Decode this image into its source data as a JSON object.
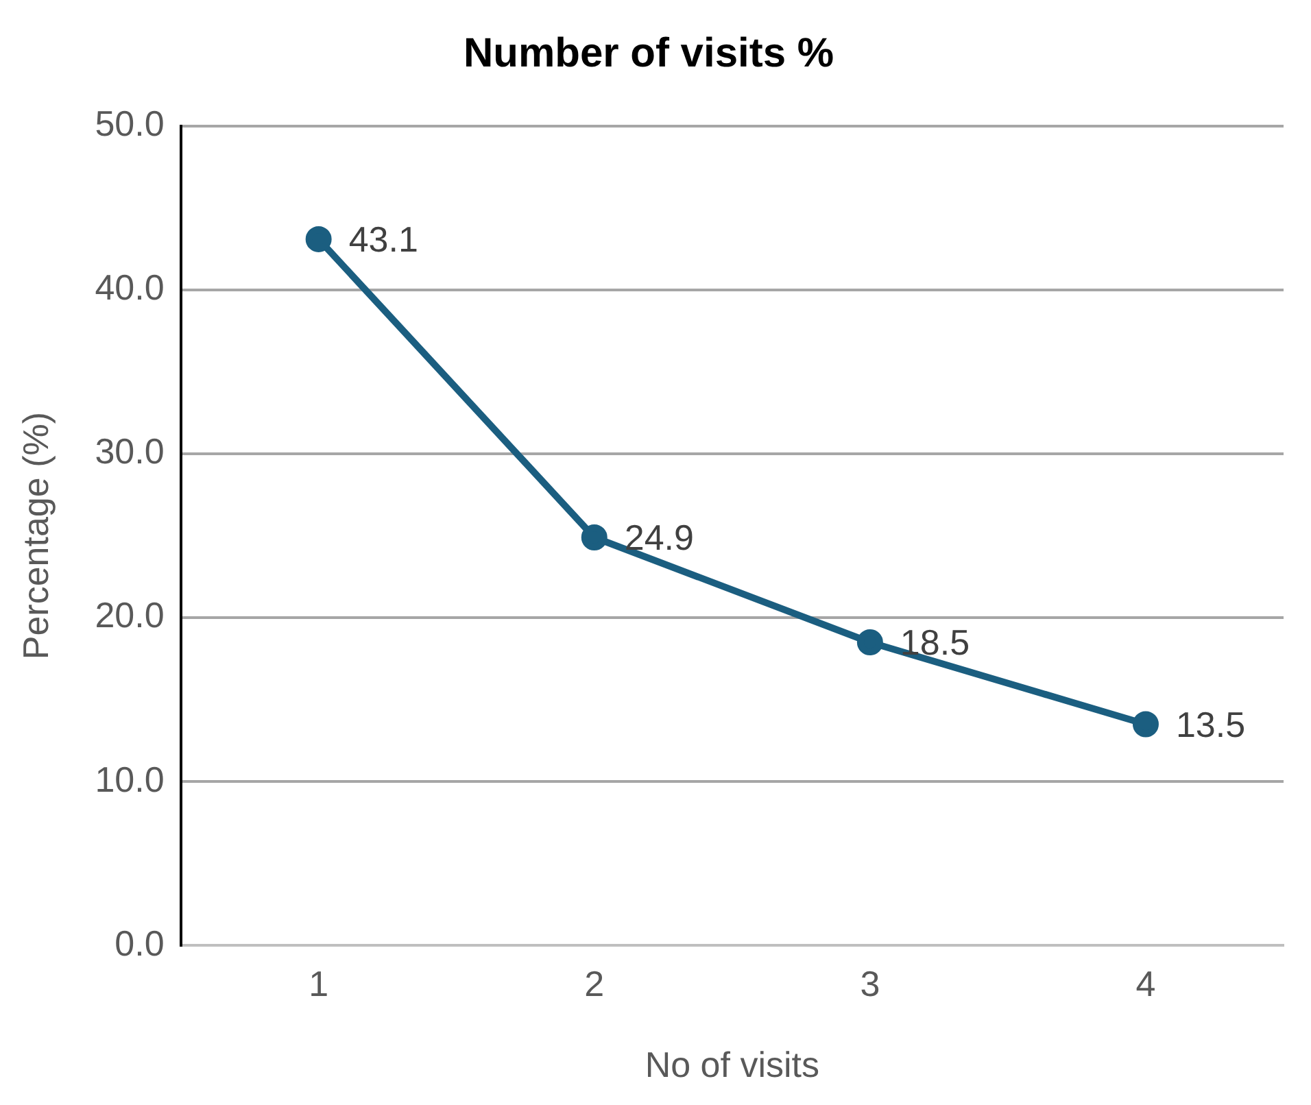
{
  "chart_data": {
    "type": "line",
    "title": "Number of visits %",
    "xlabel": "No of visits",
    "ylabel": "Percentage (%)",
    "categories": [
      "1",
      "2",
      "3",
      "4"
    ],
    "series": [
      {
        "color": "#1b5e80",
        "values": [
          43.1,
          24.9,
          18.5,
          13.5
        ]
      }
    ],
    "ylim": [
      0,
      50
    ],
    "yticks": [
      {
        "value": 0,
        "label": "0.0"
      },
      {
        "value": 10,
        "label": "10.0"
      },
      {
        "value": 20,
        "label": "20.0"
      },
      {
        "value": 30,
        "label": "30.0"
      },
      {
        "value": 40,
        "label": "40.0"
      },
      {
        "value": 50,
        "label": "50.0"
      }
    ],
    "grid": "y",
    "legend": false,
    "marker": "circle",
    "line_style": "solid",
    "data_labels": true
  }
}
